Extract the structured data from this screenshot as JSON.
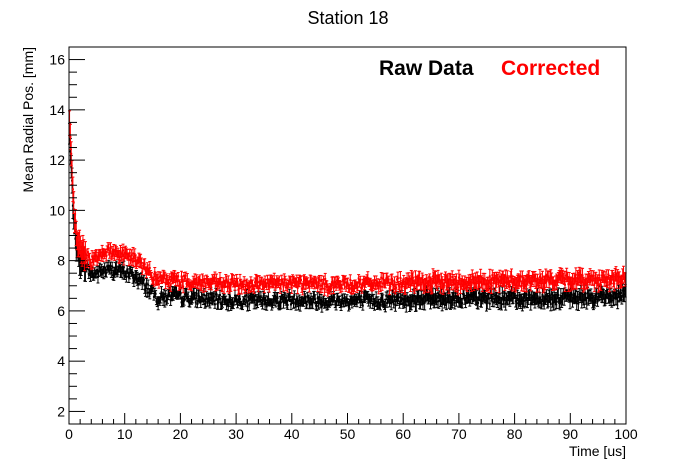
{
  "chart_data": {
    "type": "scatter",
    "title": "Station 18",
    "xlabel": "Time [us]",
    "ylabel": "Mean Radial Pos. [mm]",
    "xlim": [
      0,
      100
    ],
    "ylim": [
      1.5,
      16.5
    ],
    "x_ticks": [
      0,
      10,
      20,
      30,
      40,
      50,
      60,
      70,
      80,
      90,
      100
    ],
    "y_ticks": [
      2,
      4,
      6,
      8,
      10,
      12,
      14,
      16
    ],
    "grid": false,
    "legend_placement": "top-right",
    "series": [
      {
        "name": "Raw Data",
        "color": "#000000",
        "anchors": [
          [
            0.1,
            13.0
          ],
          [
            0.5,
            11.2
          ],
          [
            1.0,
            9.2
          ],
          [
            1.5,
            8.3
          ],
          [
            2.0,
            8.0
          ],
          [
            3.0,
            7.8
          ],
          [
            4.0,
            7.45
          ],
          [
            5.0,
            7.5
          ],
          [
            6.0,
            7.6
          ],
          [
            8.0,
            7.65
          ],
          [
            10.0,
            7.55
          ],
          [
            12.0,
            7.35
          ],
          [
            14.0,
            6.95
          ],
          [
            16.0,
            6.5
          ],
          [
            18.0,
            6.6
          ],
          [
            20.0,
            6.55
          ],
          [
            25.0,
            6.45
          ],
          [
            30.0,
            6.4
          ],
          [
            35.0,
            6.4
          ],
          [
            40.0,
            6.45
          ],
          [
            45.0,
            6.4
          ],
          [
            50.0,
            6.4
          ],
          [
            55.0,
            6.4
          ],
          [
            60.0,
            6.45
          ],
          [
            65.0,
            6.5
          ],
          [
            70.0,
            6.5
          ],
          [
            75.0,
            6.5
          ],
          [
            80.0,
            6.5
          ],
          [
            85.0,
            6.5
          ],
          [
            90.0,
            6.5
          ],
          [
            95.0,
            6.55
          ],
          [
            100.0,
            6.6
          ]
        ]
      },
      {
        "name": "Corrected",
        "color": "#ff0000",
        "anchors": [
          [
            0.1,
            13.3
          ],
          [
            0.5,
            11.8
          ],
          [
            1.0,
            9.6
          ],
          [
            1.5,
            8.9
          ],
          [
            2.0,
            8.5
          ],
          [
            3.0,
            8.2
          ],
          [
            4.0,
            8.0
          ],
          [
            5.0,
            8.2
          ],
          [
            6.0,
            8.35
          ],
          [
            8.0,
            8.35
          ],
          [
            10.0,
            8.25
          ],
          [
            12.0,
            8.05
          ],
          [
            14.0,
            7.6
          ],
          [
            16.0,
            7.2
          ],
          [
            18.0,
            7.25
          ],
          [
            20.0,
            7.2
          ],
          [
            25.0,
            7.1
          ],
          [
            30.0,
            7.05
          ],
          [
            35.0,
            7.05
          ],
          [
            40.0,
            7.1
          ],
          [
            45.0,
            7.05
          ],
          [
            50.0,
            7.05
          ],
          [
            55.0,
            7.1
          ],
          [
            60.0,
            7.1
          ],
          [
            65.0,
            7.15
          ],
          [
            70.0,
            7.15
          ],
          [
            75.0,
            7.2
          ],
          [
            80.0,
            7.2
          ],
          [
            85.0,
            7.2
          ],
          [
            90.0,
            7.25
          ],
          [
            95.0,
            7.25
          ],
          [
            100.0,
            7.3
          ]
        ]
      }
    ]
  }
}
